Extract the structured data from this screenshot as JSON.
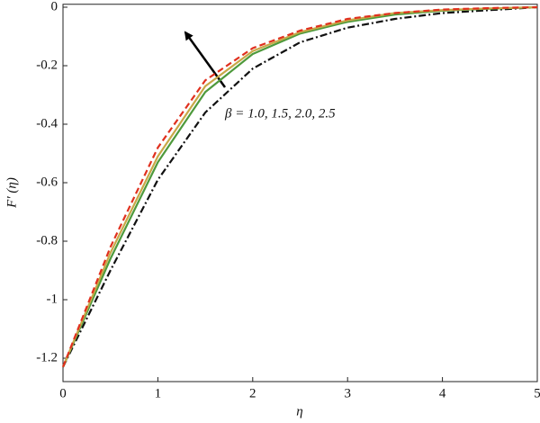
{
  "chart_data": {
    "type": "line",
    "x_label": "η",
    "y_label": "F′ (η)",
    "annotation": "β = 1.0, 1.5, 2.0, 2.5",
    "x": [
      0,
      0.5,
      1,
      1.5,
      2,
      2.5,
      3,
      3.5,
      4,
      4.5,
      5
    ],
    "series": [
      {
        "color": "#111111",
        "dash": "8,3,2,3",
        "values": [
          -1.23,
          -0.9,
          -0.59,
          -0.36,
          -0.21,
          -0.12,
          -0.07,
          -0.04,
          -0.02,
          -0.01,
          0
        ]
      },
      {
        "color": "#4e9a3c",
        "dash": "none",
        "values": [
          -1.23,
          -0.86,
          -0.53,
          -0.29,
          -0.16,
          -0.09,
          -0.05,
          -0.025,
          -0.012,
          -0.005,
          0
        ]
      },
      {
        "color": "#c8a848",
        "dash": "none",
        "values": [
          -1.23,
          -0.84,
          -0.51,
          -0.27,
          -0.15,
          -0.085,
          -0.045,
          -0.02,
          -0.01,
          -0.004,
          0
        ]
      },
      {
        "color": "#e0301e",
        "dash": "7,4",
        "values": [
          -1.23,
          -0.82,
          -0.48,
          -0.25,
          -0.14,
          -0.08,
          -0.04,
          -0.02,
          -0.008,
          -0.003,
          0
        ]
      }
    ],
    "xlim": [
      0,
      5
    ],
    "xticks": [
      0,
      1,
      2,
      3,
      4,
      5
    ],
    "ylim": [
      -1.28,
      0.01
    ],
    "yticks": [
      0,
      -0.2,
      -0.4,
      -0.6,
      -0.8,
      -1,
      -1.2
    ],
    "grid": false
  }
}
